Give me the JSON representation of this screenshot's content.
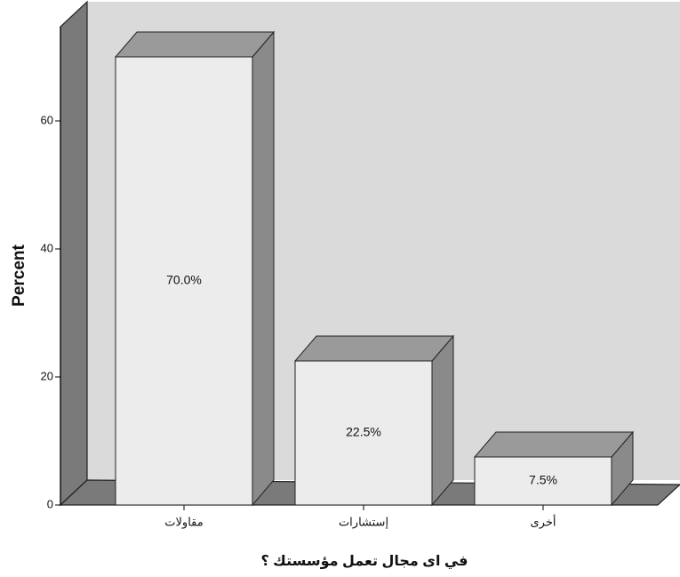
{
  "chart_data": {
    "type": "bar3d",
    "categories": [
      "مقاولات",
      "إستشارات",
      "أخرى"
    ],
    "values": [
      70,
      22.5,
      7.5
    ],
    "value_labels": [
      "70.0%",
      "22.5%",
      "7.5%"
    ],
    "y_label": "Percent",
    "x_label": "في اى مجال تعمل مؤسستك ؟",
    "ylim": [
      0,
      75
    ],
    "yticks": [
      0,
      20,
      40,
      60
    ],
    "color": "#ececec"
  }
}
